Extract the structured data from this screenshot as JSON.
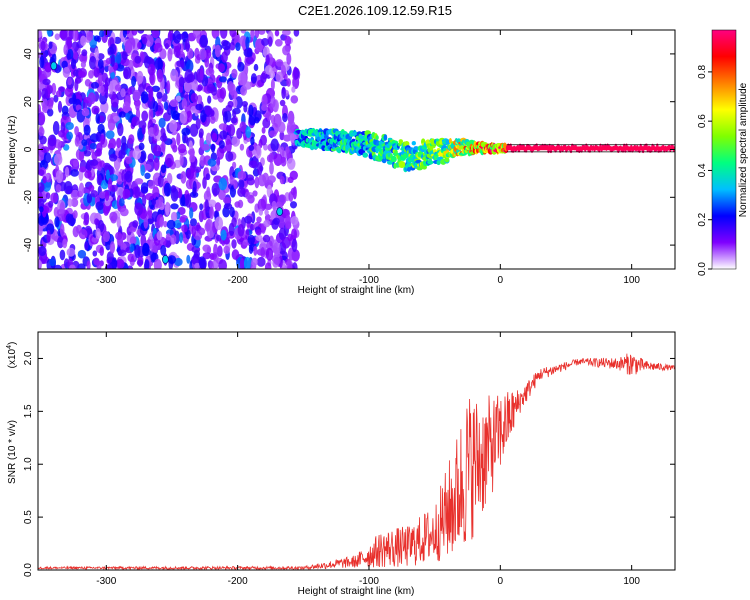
{
  "title": "C2E1.2026.109.12.59.R15",
  "chart_data": [
    {
      "type": "heatmap",
      "xlabel": "Height of straight line (km)",
      "ylabel": "Frequency (Hz)",
      "xlim": [
        -352,
        133
      ],
      "ylim": [
        -50,
        50
      ],
      "xticks": [
        -300,
        -200,
        -100,
        0,
        100
      ],
      "yticks": [
        -40,
        -20,
        0,
        20,
        40
      ],
      "colorbar": {
        "label": "Normalized spectral amplitude",
        "range": [
          0,
          0.97
        ],
        "ticks": [
          "0.0",
          "0.2",
          "0.4",
          "0.6",
          "0.8"
        ],
        "colors": [
          "#ffffff",
          "#7f00ff",
          "#0000ff",
          "#00bfff",
          "#00ff80",
          "#80ff00",
          "#ffff00",
          "#ff8000",
          "#ff0000",
          "#ff0080"
        ]
      },
      "noise_region": {
        "x": [
          -352,
          -155
        ],
        "y": [
          -50,
          50
        ],
        "level": 0.15
      },
      "signal_ridge": [
        {
          "x": -155,
          "f": 5,
          "spread": 3,
          "level": 0.35
        },
        {
          "x": -130,
          "f": 4,
          "spread": 4,
          "level": 0.4
        },
        {
          "x": -100,
          "f": 2,
          "spread": 5,
          "level": 0.45
        },
        {
          "x": -70,
          "f": -3,
          "spread": 6,
          "level": 0.5
        },
        {
          "x": -45,
          "f": -1,
          "spread": 5,
          "level": 0.55
        },
        {
          "x": -30,
          "f": 1,
          "spread": 3,
          "level": 0.7
        },
        {
          "x": -10,
          "f": 0.5,
          "spread": 1.5,
          "level": 0.85
        },
        {
          "x": 10,
          "f": 0.5,
          "spread": 1,
          "level": 0.95
        },
        {
          "x": 133,
          "f": 0.5,
          "spread": 1,
          "level": 0.95
        }
      ],
      "hotspots": [
        {
          "x": -340,
          "f": 35
        },
        {
          "x": -168,
          "f": -26
        },
        {
          "x": -255,
          "f": -46
        }
      ]
    },
    {
      "type": "line",
      "xlabel": "Height of straight line (km)",
      "ylabel": "SNR (10 * v/v)",
      "multiplier": "(x10",
      "multiplier_exp": "4",
      "multiplier_close": ")",
      "xlim": [
        -352,
        133
      ],
      "ylim": [
        0,
        2.25
      ],
      "xticks": [
        -300,
        -200,
        -100,
        0,
        100
      ],
      "yticks": [
        "0.0",
        "0.5",
        "1.0",
        "1.5",
        "2.0"
      ],
      "color": "#e8302c",
      "envelope": [
        {
          "x": -352,
          "y": 0.02,
          "noise": 0.01
        },
        {
          "x": -150,
          "y": 0.02,
          "noise": 0.015
        },
        {
          "x": -110,
          "y": 0.08,
          "noise": 0.06
        },
        {
          "x": -90,
          "y": 0.2,
          "noise": 0.18
        },
        {
          "x": -70,
          "y": 0.22,
          "noise": 0.2
        },
        {
          "x": -50,
          "y": 0.35,
          "noise": 0.28
        },
        {
          "x": -35,
          "y": 0.65,
          "noise": 0.55
        },
        {
          "x": -25,
          "y": 0.95,
          "noise": 0.75
        },
        {
          "x": -15,
          "y": 1.05,
          "noise": 0.6
        },
        {
          "x": -5,
          "y": 1.2,
          "noise": 0.45
        },
        {
          "x": 5,
          "y": 1.4,
          "noise": 0.3
        },
        {
          "x": 15,
          "y": 1.6,
          "noise": 0.12
        },
        {
          "x": 30,
          "y": 1.85,
          "noise": 0.06
        },
        {
          "x": 60,
          "y": 1.97,
          "noise": 0.03
        },
        {
          "x": 90,
          "y": 1.95,
          "noise": 0.06
        },
        {
          "x": 100,
          "y": 1.95,
          "noise": 0.12
        },
        {
          "x": 110,
          "y": 1.93,
          "noise": 0.05
        },
        {
          "x": 133,
          "y": 1.91,
          "noise": 0.02
        }
      ]
    }
  ]
}
